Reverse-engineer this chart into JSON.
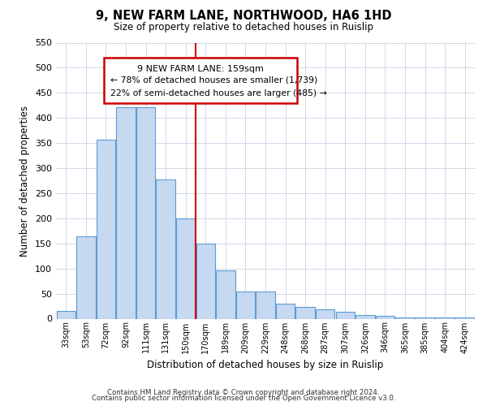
{
  "title": "9, NEW FARM LANE, NORTHWOOD, HA6 1HD",
  "subtitle": "Size of property relative to detached houses in Ruislip",
  "xlabel": "Distribution of detached houses by size in Ruislip",
  "ylabel": "Number of detached properties",
  "footnote1": "Contains HM Land Registry data © Crown copyright and database right 2024.",
  "footnote2": "Contains public sector information licensed under the Open Government Licence v3.0.",
  "bar_labels": [
    "33sqm",
    "53sqm",
    "72sqm",
    "92sqm",
    "111sqm",
    "131sqm",
    "150sqm",
    "170sqm",
    "189sqm",
    "209sqm",
    "229sqm",
    "248sqm",
    "268sqm",
    "287sqm",
    "307sqm",
    "326sqm",
    "346sqm",
    "365sqm",
    "385sqm",
    "404sqm",
    "424sqm"
  ],
  "bar_values": [
    15,
    165,
    357,
    422,
    422,
    278,
    200,
    150,
    97,
    54,
    54,
    30,
    23,
    18,
    13,
    7,
    5,
    3,
    2,
    3,
    3
  ],
  "bar_color": "#c6d9f0",
  "bar_edge_color": "#5b9bd5",
  "ylim": [
    0,
    550
  ],
  "yticks": [
    0,
    50,
    100,
    150,
    200,
    250,
    300,
    350,
    400,
    450,
    500,
    550
  ],
  "vline_color": "#cc0000",
  "vline_pos": 6.5,
  "annotation_title": "9 NEW FARM LANE: 159sqm",
  "annotation_line1": "← 78% of detached houses are smaller (1,739)",
  "annotation_line2": "22% of semi-detached houses are larger (485) →",
  "background_color": "#ffffff",
  "grid_color": "#d0d8e8"
}
